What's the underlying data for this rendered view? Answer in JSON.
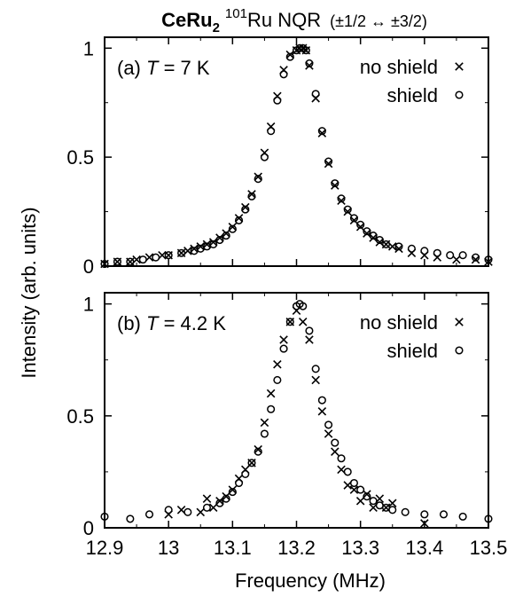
{
  "title": {
    "compound": "CeRu",
    "compound_sub": "2",
    "isotope_sup": "101",
    "nucleus": "Ru NQR",
    "transition": "(±1/2 ↔ ±3/2)"
  },
  "shared_ylabel": "Intensity (arb. units)",
  "shared_xlabel": "Frequency (MHz)",
  "x_ticks": [
    "12.9",
    "13",
    "13.1",
    "13.2",
    "13.3",
    "13.4",
    "13.5"
  ],
  "y_ticks": [
    "0",
    "0.5",
    "1"
  ],
  "legend": {
    "no_shield": "no shield",
    "shield": "shield"
  },
  "chart_data": [
    {
      "type": "scatter",
      "panel_label": "(a)",
      "temperature_var": "T",
      "temperature_value": "= 7 K",
      "xlim": [
        12.9,
        13.5
      ],
      "ylim": [
        0,
        1.05
      ],
      "series": [
        {
          "name": "no shield",
          "marker": "cross",
          "x": [
            12.9,
            12.92,
            12.94,
            12.95,
            12.97,
            12.99,
            13.0,
            13.02,
            13.03,
            13.04,
            13.05,
            13.06,
            13.07,
            13.08,
            13.09,
            13.1,
            13.11,
            13.12,
            13.13,
            13.14,
            13.15,
            13.16,
            13.17,
            13.18,
            13.19,
            13.2,
            13.205,
            13.21,
            13.215,
            13.22,
            13.23,
            13.24,
            13.25,
            13.26,
            13.27,
            13.28,
            13.29,
            13.3,
            13.31,
            13.32,
            13.33,
            13.34,
            13.35,
            13.36,
            13.38,
            13.4,
            13.42,
            13.45,
            13.48,
            13.5
          ],
          "y": [
            0.01,
            0.02,
            0.02,
            0.03,
            0.04,
            0.05,
            0.05,
            0.06,
            0.07,
            0.08,
            0.09,
            0.1,
            0.11,
            0.13,
            0.15,
            0.18,
            0.22,
            0.27,
            0.33,
            0.41,
            0.52,
            0.64,
            0.78,
            0.9,
            0.97,
            0.99,
            1.0,
            1.0,
            0.99,
            0.92,
            0.77,
            0.61,
            0.47,
            0.37,
            0.3,
            0.25,
            0.21,
            0.18,
            0.15,
            0.13,
            0.11,
            0.1,
            0.09,
            0.08,
            0.06,
            0.05,
            0.04,
            0.03,
            0.03,
            0.02
          ]
        },
        {
          "name": "shield",
          "marker": "circle",
          "x": [
            12.9,
            12.92,
            12.94,
            12.96,
            12.98,
            13.0,
            13.02,
            13.04,
            13.05,
            13.06,
            13.07,
            13.08,
            13.09,
            13.1,
            13.11,
            13.12,
            13.13,
            13.14,
            13.15,
            13.16,
            13.17,
            13.18,
            13.19,
            13.2,
            13.205,
            13.21,
            13.215,
            13.22,
            13.23,
            13.24,
            13.25,
            13.26,
            13.27,
            13.28,
            13.29,
            13.3,
            13.31,
            13.32,
            13.33,
            13.34,
            13.36,
            13.38,
            13.4,
            13.42,
            13.44,
            13.46,
            13.48,
            13.5
          ],
          "y": [
            0.01,
            0.02,
            0.02,
            0.03,
            0.04,
            0.05,
            0.06,
            0.07,
            0.08,
            0.09,
            0.1,
            0.12,
            0.14,
            0.17,
            0.21,
            0.26,
            0.32,
            0.4,
            0.5,
            0.62,
            0.76,
            0.88,
            0.96,
            0.99,
            1.0,
            1.0,
            0.99,
            0.93,
            0.79,
            0.62,
            0.48,
            0.38,
            0.31,
            0.26,
            0.22,
            0.19,
            0.16,
            0.14,
            0.12,
            0.1,
            0.09,
            0.08,
            0.07,
            0.06,
            0.05,
            0.05,
            0.04,
            0.03
          ]
        }
      ]
    },
    {
      "type": "scatter",
      "panel_label": "(b)",
      "temperature_var": "T",
      "temperature_value": "= 4.2 K",
      "xlim": [
        12.9,
        13.5
      ],
      "ylim": [
        0,
        1.05
      ],
      "series": [
        {
          "name": "no shield",
          "marker": "cross",
          "x": [
            13.0,
            13.02,
            13.05,
            13.06,
            13.07,
            13.08,
            13.09,
            13.1,
            13.11,
            13.12,
            13.13,
            13.14,
            13.15,
            13.16,
            13.17,
            13.18,
            13.19,
            13.2,
            13.21,
            13.22,
            13.23,
            13.24,
            13.25,
            13.26,
            13.27,
            13.28,
            13.29,
            13.3,
            13.31,
            13.32,
            13.33,
            13.34,
            13.35,
            13.4
          ],
          "y": [
            0.06,
            0.08,
            0.07,
            0.13,
            0.09,
            0.12,
            0.14,
            0.17,
            0.22,
            0.26,
            0.29,
            0.35,
            0.47,
            0.6,
            0.73,
            0.84,
            0.92,
            0.97,
            0.92,
            0.84,
            0.66,
            0.52,
            0.42,
            0.34,
            0.26,
            0.19,
            0.17,
            0.12,
            0.15,
            0.09,
            0.13,
            0.09,
            0.11,
            0.02
          ]
        },
        {
          "name": "shield",
          "marker": "circle",
          "x": [
            12.9,
            12.94,
            12.97,
            13.0,
            13.03,
            13.06,
            13.08,
            13.09,
            13.1,
            13.11,
            13.12,
            13.13,
            13.14,
            13.15,
            13.16,
            13.17,
            13.18,
            13.19,
            13.2,
            13.205,
            13.21,
            13.22,
            13.23,
            13.24,
            13.25,
            13.26,
            13.27,
            13.28,
            13.29,
            13.3,
            13.31,
            13.32,
            13.33,
            13.34,
            13.35,
            13.37,
            13.4,
            13.43,
            13.46,
            13.5
          ],
          "y": [
            0.05,
            0.04,
            0.06,
            0.08,
            0.07,
            0.09,
            0.11,
            0.13,
            0.16,
            0.2,
            0.24,
            0.29,
            0.34,
            0.42,
            0.53,
            0.66,
            0.8,
            0.92,
            0.99,
            1.0,
            0.99,
            0.88,
            0.71,
            0.57,
            0.46,
            0.38,
            0.31,
            0.25,
            0.2,
            0.17,
            0.14,
            0.12,
            0.1,
            0.09,
            0.08,
            0.07,
            0.06,
            0.06,
            0.05,
            0.04
          ]
        }
      ]
    }
  ]
}
